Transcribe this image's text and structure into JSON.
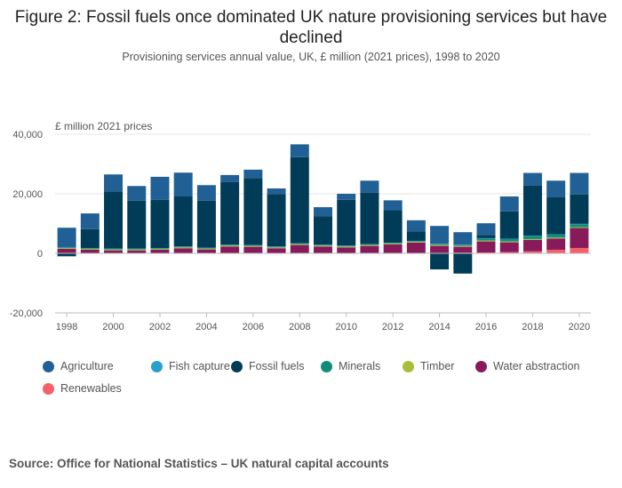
{
  "header": {
    "title": "Figure 2: Fossil fuels once dominated UK nature provisioning services but have declined",
    "subtitle": "Provisioning services annual value, UK, £ million (2021 prices), 1998 to 2020"
  },
  "footer": {
    "source": "Source: Office for National Statistics – UK natural capital accounts"
  },
  "colors": {
    "agriculture": "#206095",
    "fish_capture": "#27a0cc",
    "fossil_fuels": "#003c57",
    "minerals": "#118c7b",
    "timber": "#a8bd3a",
    "water_abstraction": "#871a5b",
    "renewables": "#f66068",
    "gridline": "#e5e5e5",
    "zero_line": "#bbbbbb"
  },
  "chart_data": {
    "type": "bar",
    "stacked": true,
    "unit_label": "£ million 2021 prices",
    "ylim": [
      -20000,
      40000
    ],
    "y_ticks": [
      -20000,
      0,
      20000,
      40000
    ],
    "y_tick_labels": [
      "-20,000",
      "0",
      "20,000",
      "40,000"
    ],
    "x_tick_labels": [
      "1998",
      "2000",
      "2002",
      "2004",
      "2006",
      "2008",
      "2010",
      "2012",
      "2014",
      "2016",
      "2018",
      "2020"
    ],
    "legend_position": "bottom",
    "categories": [
      1998,
      1999,
      2000,
      2001,
      2002,
      2003,
      2004,
      2005,
      2006,
      2007,
      2008,
      2009,
      2010,
      2011,
      2012,
      2013,
      2014,
      2015,
      2016,
      2017,
      2018,
      2019,
      2020
    ],
    "series": [
      {
        "name": "Renewables",
        "key": "renewables",
        "values": [
          0,
          0,
          0,
          0,
          0,
          0,
          0,
          0,
          0,
          0,
          0,
          0,
          0,
          0,
          0,
          0,
          0,
          200,
          300,
          400,
          700,
          1200,
          1800
        ]
      },
      {
        "name": "Water abstraction",
        "key": "water_abstraction",
        "values": [
          1500,
          1200,
          1000,
          1000,
          1200,
          1700,
          1300,
          2300,
          2200,
          1700,
          2800,
          2300,
          2000,
          2500,
          3000,
          3600,
          2500,
          2000,
          3700,
          3300,
          3800,
          3800,
          6700
        ]
      },
      {
        "name": "Timber",
        "key": "timber",
        "values": [
          300,
          300,
          300,
          300,
          300,
          300,
          300,
          300,
          300,
          300,
          300,
          300,
          300,
          300,
          300,
          300,
          300,
          300,
          300,
          300,
          300,
          300,
          300
        ]
      },
      {
        "name": "Minerals",
        "key": "minerals",
        "values": [
          200,
          200,
          200,
          200,
          200,
          200,
          200,
          200,
          200,
          200,
          200,
          200,
          200,
          200,
          200,
          200,
          300,
          300,
          700,
          800,
          1000,
          1000,
          1000
        ]
      },
      {
        "name": "Fish capture",
        "key": "fish_capture",
        "values": [
          100,
          100,
          100,
          100,
          100,
          100,
          100,
          100,
          100,
          100,
          100,
          100,
          100,
          100,
          100,
          100,
          100,
          100,
          100,
          100,
          100,
          100,
          100
        ]
      },
      {
        "name": "Fossil fuels",
        "key": "fossil_fuels",
        "values": [
          -1000,
          6300,
          19200,
          16100,
          16200,
          16800,
          15800,
          21000,
          22500,
          17600,
          28900,
          9600,
          15400,
          17300,
          10900,
          3100,
          -5400,
          -6800,
          1100,
          9200,
          16800,
          12400,
          9900
        ]
      },
      {
        "name": "Agriculture",
        "key": "agriculture",
        "values": [
          6500,
          5300,
          5700,
          4900,
          7700,
          8000,
          5200,
          2400,
          2800,
          1900,
          4300,
          3000,
          2000,
          4000,
          3300,
          3800,
          6000,
          4200,
          3900,
          5000,
          4300,
          5600,
          7200
        ]
      }
    ],
    "legend_order": [
      "agriculture",
      "fish_capture",
      "fossil_fuels",
      "minerals",
      "timber",
      "water_abstraction",
      "renewables"
    ],
    "legend_labels": {
      "agriculture": "Agriculture",
      "fish_capture": "Fish capture",
      "fossil_fuels": "Fossil fuels",
      "minerals": "Minerals",
      "timber": "Timber",
      "water_abstraction": "Water abstraction",
      "renewables": "Renewables"
    }
  }
}
